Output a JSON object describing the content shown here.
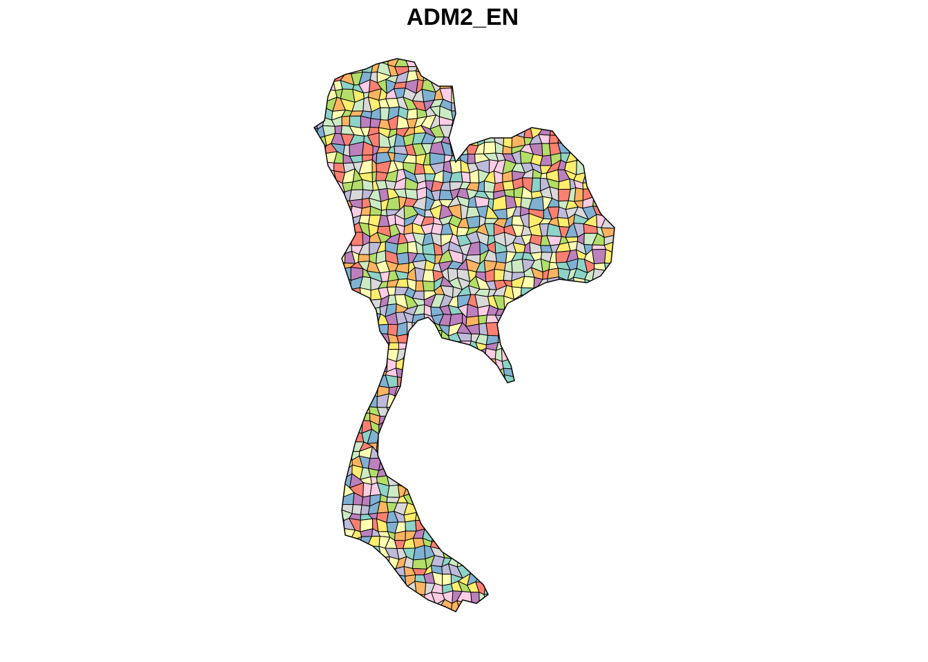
{
  "title": "ADM2_EN"
}
